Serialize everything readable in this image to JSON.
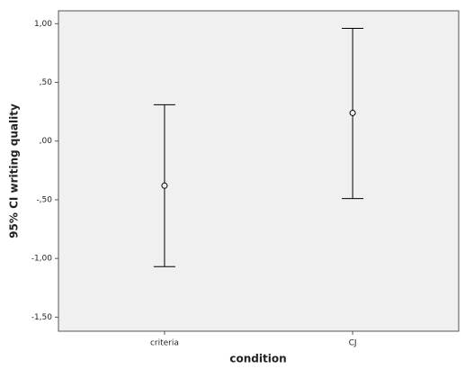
{
  "chart_data": {
    "type": "errorbar",
    "x_label": "condition",
    "y_label": "95% CI writing quality",
    "categories": [
      "criteria",
      "CJ"
    ],
    "series": [
      {
        "values": [
          -0.38,
          0.24
        ],
        "lower": [
          -1.07,
          -0.49
        ],
        "upper": [
          0.31,
          0.96
        ],
        "color": "#000000"
      }
    ],
    "ylim": [
      -1.62,
      1.11
    ],
    "yticks": [
      {
        "value": 1,
        "label": "1,00"
      },
      {
        "value": 0.5,
        "label": ",50"
      },
      {
        "value": 0,
        "label": ",00"
      },
      {
        "value": -0.5,
        "label": "-,50"
      },
      {
        "value": -1,
        "label": "-1,00"
      },
      {
        "value": -1.5,
        "label": "-1,50"
      }
    ]
  }
}
